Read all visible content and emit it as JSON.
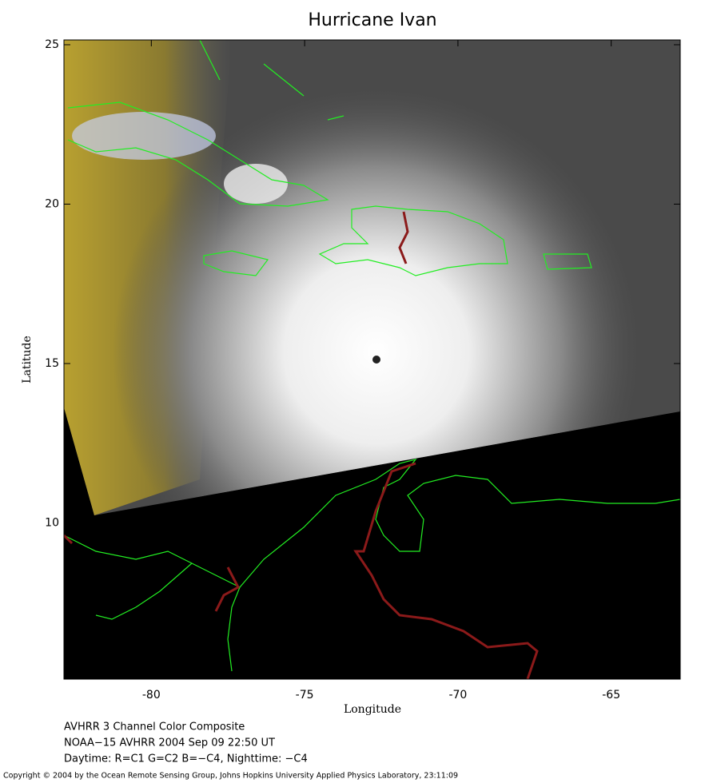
{
  "chart_data": {
    "type": "map",
    "title": "Hurricane Ivan",
    "xlabel": "Longitude",
    "ylabel": "Latitude",
    "xlim": [
      -82.85,
      -62.75
    ],
    "ylim": [
      5.1,
      25.15
    ],
    "xticks": [
      -80,
      -75,
      -70,
      -65
    ],
    "yticks": [
      10,
      15,
      20,
      25
    ],
    "caption": [
      "AVHRR 3 Channel Color Composite",
      "NOAA−15 AVHRR 2004 Sep 09 22:50 UT",
      "Daytime: R=C1 G=C2 B=−C4, Nighttime: −C4"
    ],
    "copyright": "Copyright © 2004 by the Ocean Remote Sensing Group, Johns Hopkins University Applied Physics Laboratory, 23:11:09"
  }
}
